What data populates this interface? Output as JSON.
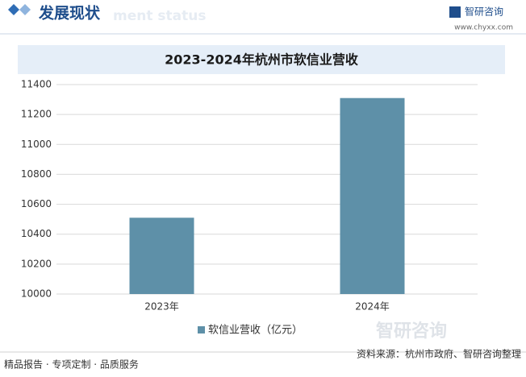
{
  "header": {
    "title": "发展现状",
    "subtitle": "ment status",
    "brand": "智研咨询",
    "url": "www.chyxx.com"
  },
  "chart_data": {
    "type": "bar",
    "title": "2023-2024年杭州市软信业营收",
    "categories": [
      "2023年",
      "2024年"
    ],
    "series": [
      {
        "name": "软信业营收（亿元）",
        "color": "#5e90a8",
        "values": [
          10510,
          11310
        ]
      }
    ],
    "ylim": [
      10000,
      11400
    ],
    "yticks": [
      10000,
      10200,
      10400,
      10600,
      10800,
      11000,
      11200,
      11400
    ],
    "grid": true,
    "legend": "bottom"
  },
  "footer": {
    "slogan": "精品报告 · 专项定制 · 品质服务",
    "source": "资料来源：杭州市政府、智研咨询整理",
    "logo": "智研咨询"
  }
}
